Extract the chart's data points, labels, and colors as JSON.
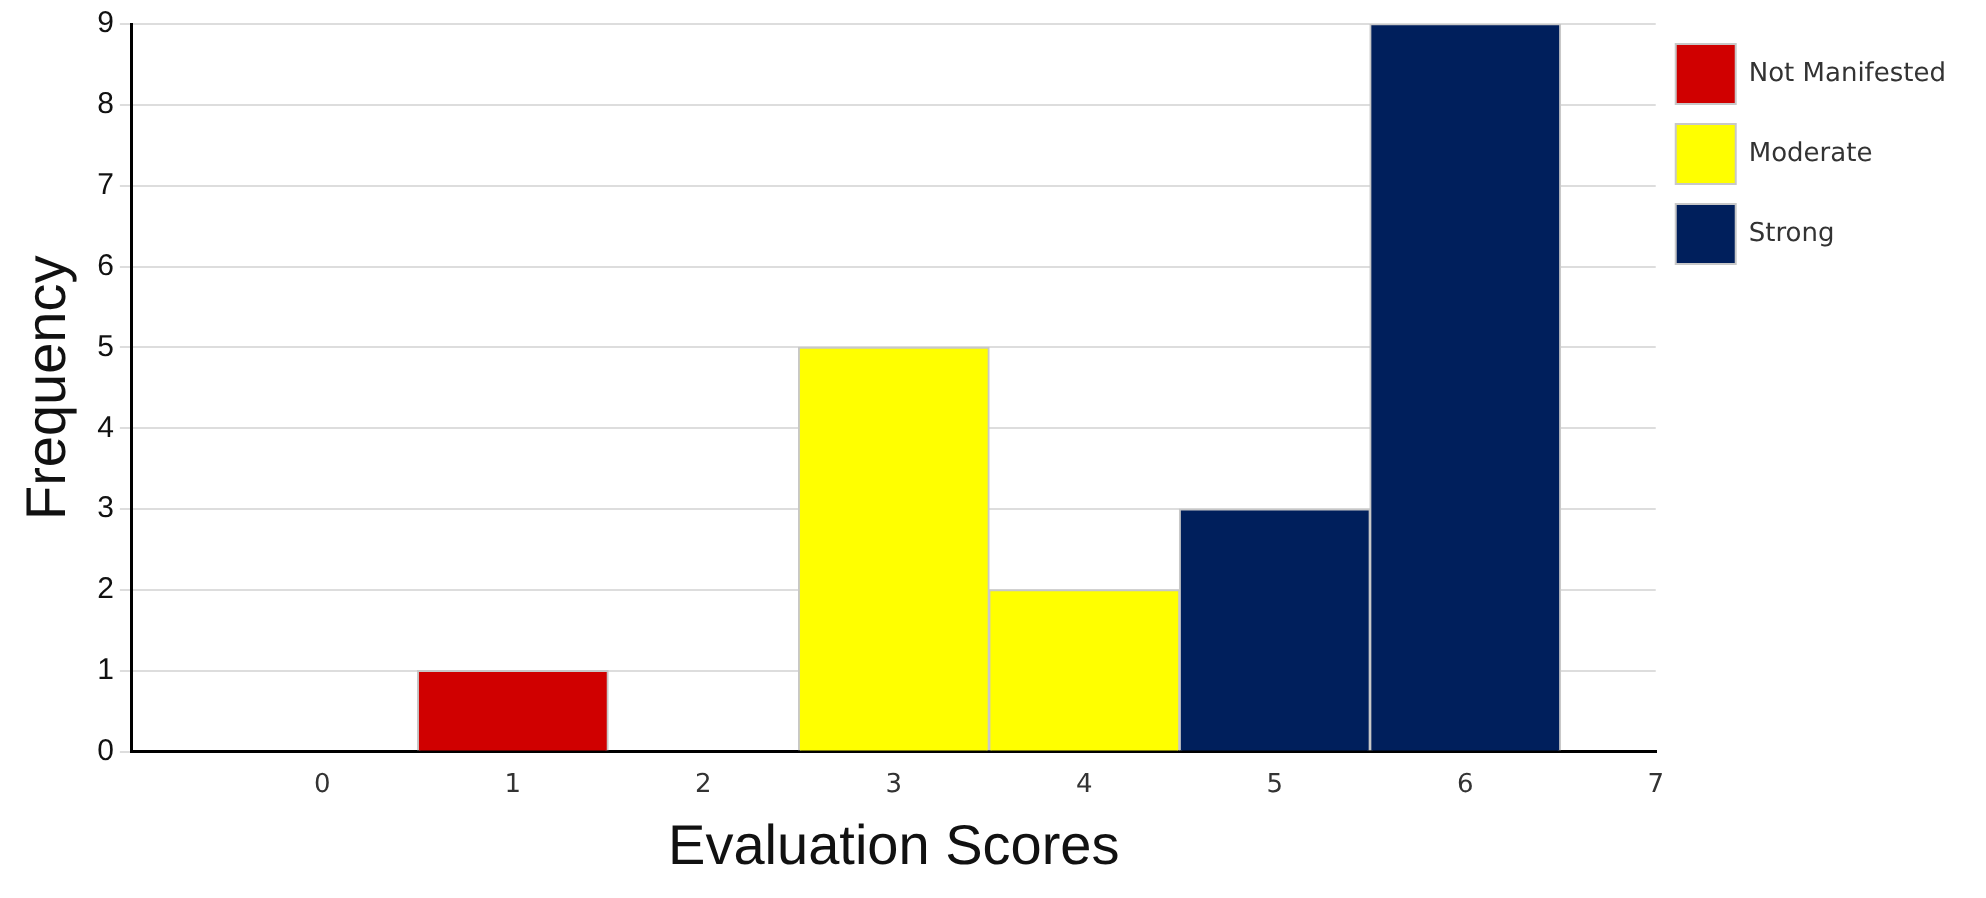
{
  "chart_data": {
    "type": "histogram",
    "xlabel": "Evaluation Scores",
    "ylabel": "Frequency",
    "bins": [
      -0.5,
      0.5,
      1.5,
      2.5,
      3.5,
      4.5,
      5.5,
      6.5
    ],
    "series": [
      {
        "name": "Not Manifested",
        "color": "#d00000",
        "values": [
          0,
          1,
          0,
          null,
          null,
          null,
          null
        ]
      },
      {
        "name": "Moderate",
        "color": "#ffff00",
        "values": [
          null,
          null,
          null,
          5,
          2,
          null,
          null
        ]
      },
      {
        "name": "Strong",
        "color": "#001f5c",
        "values": [
          null,
          null,
          null,
          null,
          null,
          3,
          9
        ]
      }
    ],
    "xlim": [
      -1,
      7
    ],
    "xticks": [
      0,
      1,
      2,
      3,
      4,
      5,
      6,
      7
    ],
    "ylim": [
      0,
      9
    ],
    "yticks": [
      0,
      1,
      2,
      3,
      4,
      5,
      6,
      7,
      8,
      9
    ],
    "grid": "y",
    "legend": "right"
  }
}
